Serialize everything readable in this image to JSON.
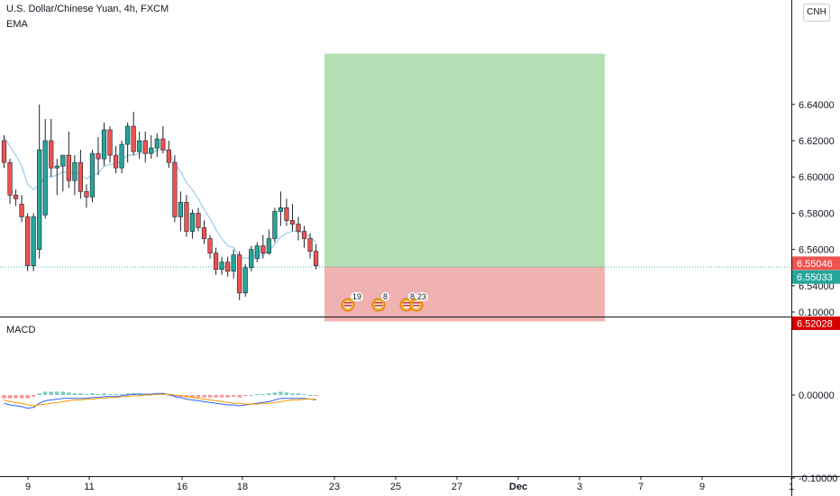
{
  "title": "U.S. Dollar/Chinese Yuan, 4h, FXCM",
  "indicator_main": "EMA",
  "indicator_sub": "MACD",
  "currency_badge": "CNH",
  "events": [
    {
      "count": "19"
    },
    {
      "count": "8"
    },
    {
      "count": "8"
    },
    {
      "count": "23"
    }
  ],
  "price_tags": {
    "upper": {
      "text": "6.55046",
      "color": "#ef5350"
    },
    "lower": {
      "text": "6.55033",
      "color": "#26a69a"
    },
    "stop": {
      "text": "6.52028",
      "color": "#d50000"
    }
  },
  "colors": {
    "up": "#26a69a",
    "down": "#ef5350",
    "ema": "#a7d3ec",
    "profit_zone": "#b2dfb4",
    "loss_zone": "#f0b1b1",
    "macd_line": "#2962ff",
    "signal_line": "#ff9800"
  },
  "chart_data": {
    "type": "candlestick",
    "title": "U.S. Dollar/Chinese Yuan, 4h, FXCM",
    "x_ticks": [
      "9",
      "11",
      "16",
      "18",
      "23",
      "25",
      "27",
      "Dec",
      "3",
      "7",
      "9",
      "1"
    ],
    "y_ticks": [
      "6.64000",
      "6.62000",
      "6.60000",
      "6.58000",
      "6.56000",
      "6.54000"
    ],
    "ylim": [
      6.523,
      6.668
    ],
    "macd_y_ticks": [
      "0.10000",
      "0.00000",
      "-0.10000"
    ],
    "macd_ylim": [
      -0.19,
      0.17
    ],
    "candles": [
      [
        6.62,
        6.623,
        6.605,
        6.608
      ],
      [
        6.608,
        6.61,
        6.585,
        6.59
      ],
      [
        6.59,
        6.593,
        6.584,
        6.588
      ],
      [
        6.585,
        6.59,
        6.575,
        6.578
      ],
      [
        6.578,
        6.58,
        6.548,
        6.551
      ],
      [
        6.551,
        6.58,
        6.548,
        6.578
      ],
      [
        6.56,
        6.64,
        6.555,
        6.615
      ],
      [
        6.579,
        6.632,
        6.577,
        6.62
      ],
      [
        6.62,
        6.632,
        6.6,
        6.605
      ],
      [
        6.605,
        6.61,
        6.59,
        6.606
      ],
      [
        6.606,
        6.612,
        6.592,
        6.612
      ],
      [
        6.612,
        6.625,
        6.594,
        6.598
      ],
      [
        6.598,
        6.612,
        6.59,
        6.608
      ],
      [
        6.608,
        6.615,
        6.588,
        6.592
      ],
      [
        6.592,
        6.596,
        6.583,
        6.589
      ],
      [
        6.589,
        6.615,
        6.586,
        6.613
      ],
      [
        6.613,
        6.622,
        6.601,
        6.61
      ],
      [
        6.61,
        6.63,
        6.606,
        6.626
      ],
      [
        6.626,
        6.628,
        6.608,
        6.612
      ],
      [
        6.612,
        6.617,
        6.602,
        6.605
      ],
      [
        6.605,
        6.62,
        6.602,
        6.618
      ],
      [
        6.618,
        6.63,
        6.608,
        6.628
      ],
      [
        6.628,
        6.636,
        6.612,
        6.614
      ],
      [
        6.614,
        6.625,
        6.61,
        6.62
      ],
      [
        6.62,
        6.625,
        6.608,
        6.613
      ],
      [
        6.613,
        6.623,
        6.61,
        6.616
      ],
      [
        6.616,
        6.624,
        6.611,
        6.621
      ],
      [
        6.621,
        6.628,
        6.613,
        6.615
      ],
      [
        6.615,
        6.62,
        6.605,
        6.608
      ],
      [
        6.608,
        6.612,
        6.575,
        6.578
      ],
      [
        6.578,
        6.592,
        6.57,
        6.586
      ],
      [
        6.586,
        6.59,
        6.567,
        6.57
      ],
      [
        6.57,
        6.582,
        6.566,
        6.58
      ],
      [
        6.58,
        6.583,
        6.57,
        6.572
      ],
      [
        6.572,
        6.576,
        6.563,
        6.566
      ],
      [
        6.566,
        6.568,
        6.555,
        6.558
      ],
      [
        6.558,
        6.561,
        6.546,
        6.549
      ],
      [
        6.549,
        6.556,
        6.546,
        6.553
      ],
      [
        6.553,
        6.556,
        6.545,
        6.548
      ],
      [
        6.548,
        6.56,
        6.544,
        6.557
      ],
      [
        6.557,
        6.559,
        6.532,
        6.536
      ],
      [
        6.536,
        6.552,
        6.534,
        6.55
      ],
      [
        6.55,
        6.562,
        6.548,
        6.56
      ],
      [
        6.555,
        6.564,
        6.553,
        6.562
      ],
      [
        6.562,
        6.568,
        6.555,
        6.558
      ],
      [
        6.558,
        6.571,
        6.557,
        6.566
      ],
      [
        6.566,
        6.583,
        6.564,
        6.581
      ],
      [
        6.581,
        6.592,
        6.573,
        6.583
      ],
      [
        6.583,
        6.588,
        6.573,
        6.576
      ],
      [
        6.576,
        6.585,
        6.57,
        6.574
      ],
      [
        6.574,
        6.578,
        6.565,
        6.57
      ],
      [
        6.57,
        6.573,
        6.561,
        6.566
      ],
      [
        6.566,
        6.569,
        6.555,
        6.559
      ],
      [
        6.559,
        6.563,
        6.549,
        6.551
      ]
    ],
    "ema": [
      6.622,
      6.617,
      6.612,
      6.606,
      6.596,
      6.593,
      6.596,
      6.6,
      6.6,
      6.601,
      6.603,
      6.602,
      6.603,
      6.601,
      6.599,
      6.601,
      6.602,
      6.606,
      6.607,
      6.607,
      6.609,
      6.612,
      6.612,
      6.613,
      6.613,
      6.613,
      6.615,
      6.615,
      6.614,
      6.607,
      6.603,
      6.597,
      6.593,
      6.588,
      6.582,
      6.577,
      6.571,
      6.566,
      6.562,
      6.561,
      6.556,
      6.555,
      6.556,
      6.557,
      6.557,
      6.559,
      6.563,
      6.567,
      6.569,
      6.57,
      6.57,
      6.569,
      6.567,
      6.564
    ],
    "take_profit": 6.668,
    "entry": 6.5504,
    "stop_loss": 6.5203,
    "macd_values": [
      -0.01,
      -0.012,
      -0.013,
      -0.014,
      -0.016,
      -0.015,
      -0.01,
      -0.007,
      -0.006,
      -0.005,
      -0.004,
      -0.004,
      -0.004,
      -0.004,
      -0.004,
      -0.003,
      -0.003,
      -0.002,
      -0.002,
      -0.002,
      -0.001,
      0.0,
      0.001,
      0.001,
      0.001,
      0.001,
      0.002,
      0.002,
      0.001,
      -0.002,
      -0.003,
      -0.005,
      -0.006,
      -0.007,
      -0.008,
      -0.009,
      -0.01,
      -0.011,
      -0.012,
      -0.012,
      -0.013,
      -0.012,
      -0.011,
      -0.01,
      -0.009,
      -0.008,
      -0.006,
      -0.004,
      -0.004,
      -0.004,
      -0.004,
      -0.004,
      -0.005,
      -0.006
    ],
    "signal_values": [
      -0.006,
      -0.008,
      -0.009,
      -0.01,
      -0.012,
      -0.013,
      -0.012,
      -0.011,
      -0.01,
      -0.009,
      -0.008,
      -0.007,
      -0.006,
      -0.006,
      -0.005,
      -0.005,
      -0.004,
      -0.004,
      -0.003,
      -0.003,
      -0.002,
      -0.002,
      -0.001,
      -0.001,
      0.0,
      0.0,
      0.001,
      0.001,
      0.001,
      0.0,
      -0.001,
      -0.002,
      -0.003,
      -0.004,
      -0.005,
      -0.006,
      -0.007,
      -0.008,
      -0.009,
      -0.01,
      -0.01,
      -0.011,
      -0.011,
      -0.011,
      -0.01,
      -0.01,
      -0.009,
      -0.008,
      -0.007,
      -0.006,
      -0.006,
      -0.005,
      -0.005,
      -0.005
    ],
    "histogram": [
      -0.004,
      -0.004,
      -0.004,
      -0.004,
      -0.004,
      -0.002,
      0.002,
      0.004,
      0.004,
      0.004,
      0.004,
      0.003,
      0.002,
      0.002,
      0.001,
      0.002,
      0.001,
      0.002,
      0.001,
      0.001,
      0.001,
      0.002,
      0.002,
      0.002,
      0.001,
      0.001,
      0.001,
      0.001,
      0.0,
      -0.002,
      -0.002,
      -0.003,
      -0.003,
      -0.003,
      -0.003,
      -0.003,
      -0.003,
      -0.003,
      -0.003,
      -0.002,
      -0.003,
      -0.001,
      0.0,
      0.001,
      0.001,
      0.002,
      0.003,
      0.004,
      0.003,
      0.002,
      0.002,
      0.001,
      0.0,
      -0.001
    ]
  }
}
